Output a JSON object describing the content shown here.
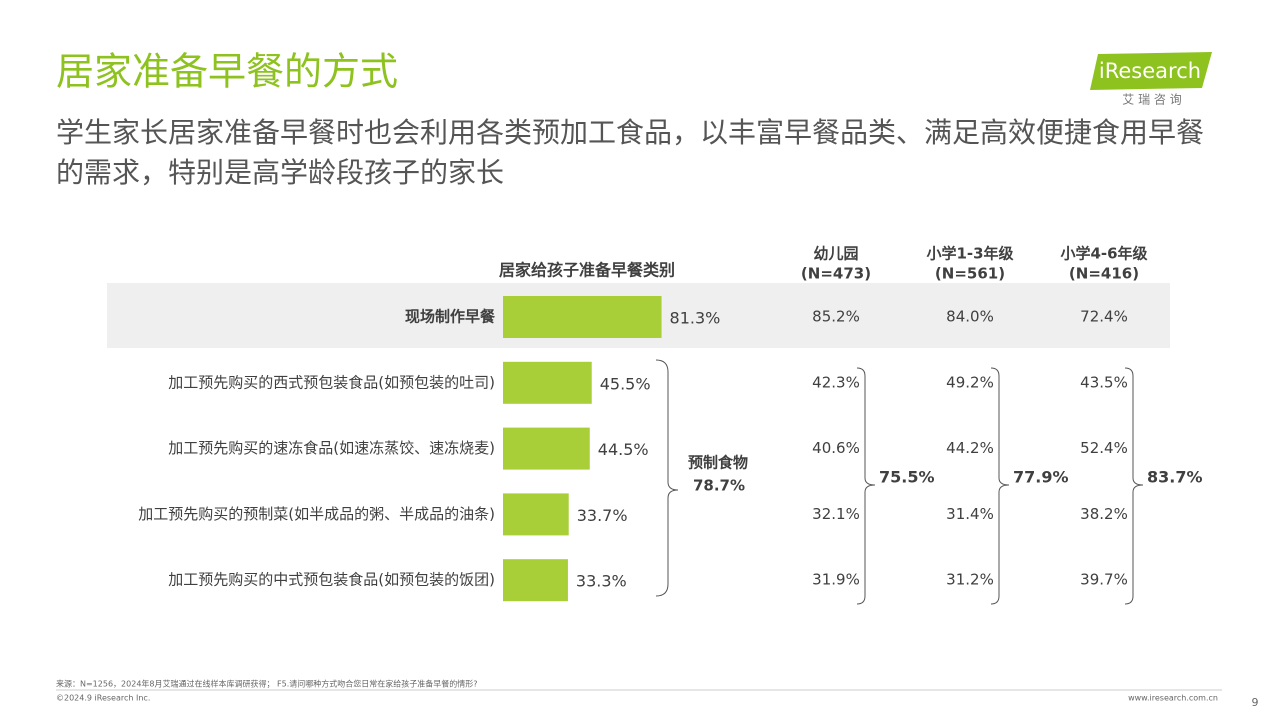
{
  "header": {
    "title": "居家准备早餐的方式",
    "subtitle": "学生家长居家准备早餐时也会利用各类预加工食品，以丰富早餐品类、满足高效便捷食用早餐的需求，特别是高学龄段孩子的家长",
    "logo": "iResearch",
    "logo_sub": "艾 瑞 咨 询"
  },
  "chart_data": {
    "type": "bar",
    "title": "居家给孩子准备早餐类别",
    "categories": [
      "现场制作早餐",
      "加工预先购买的西式预包装食品(如预包装的吐司)",
      "加工预先购买的速冻食品(如速冻蒸饺、速冻烧麦)",
      "加工预先购买的预制菜(如半成品的粥、半成品的油条)",
      "加工预先购买的中式预包装食品(如预包装的饭团)"
    ],
    "values": [
      81.3,
      45.5,
      44.5,
      33.7,
      33.3
    ],
    "value_labels": [
      "81.3%",
      "45.5%",
      "44.5%",
      "33.7%",
      "33.3%"
    ],
    "color": "#a8cf38",
    "xlim": [
      0,
      100
    ],
    "group": {
      "label": "预制食物",
      "value_label": "78.7%"
    }
  },
  "table": {
    "columns": [
      {
        "name": "幼儿园",
        "n": "(N=473)",
        "values": [
          "85.2%",
          "42.3%",
          "40.6%",
          "32.1%",
          "31.9%"
        ],
        "group": "75.5%"
      },
      {
        "name": "小学1-3年级",
        "n": "(N=561)",
        "values": [
          "84.0%",
          "49.2%",
          "44.2%",
          "31.4%",
          "31.2%"
        ],
        "group": "77.9%"
      },
      {
        "name": "小学4-6年级",
        "n": "(N=416)",
        "values": [
          "72.4%",
          "43.5%",
          "52.4%",
          "38.2%",
          "39.7%"
        ],
        "group": "83.7%"
      }
    ]
  },
  "footer": {
    "source": "来源：N=1256，2024年8月艾瑞通过在线样本库调研获得； F5.请问哪种方式吻合您日常在家给孩子准备早餐的情形?",
    "copyright": "©2024.9 iResearch Inc.",
    "url": "www.iresearch.com.cn",
    "page": "9"
  }
}
